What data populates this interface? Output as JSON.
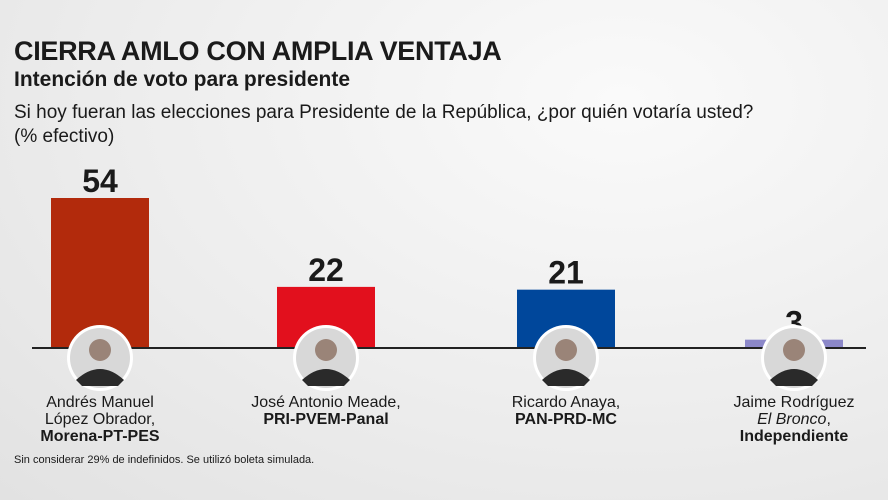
{
  "title": "CIERRA AMLO CON AMPLIA VENTAJA",
  "subtitle": "Intención de voto para presidente",
  "question": "Si hoy fueran las elecciones para Presidente de la República, ¿por quién votaría usted?",
  "unit": "(% efectivo)",
  "note": "Sin considerar 29% de indefinidos. Se utilizó boleta simulada.",
  "candidates": [
    {
      "name1": "Andrés Manuel",
      "name2": "López Obrador,",
      "party": "Morena-PT-PES"
    },
    {
      "name1": "José Antonio Meade,",
      "name2": "",
      "party": "PRI-PVEM-Panal"
    },
    {
      "name1": "Ricardo Anaya,",
      "name2": "",
      "party": "PAN-PRD-MC"
    },
    {
      "name1": "Jaime Rodríguez",
      "name2": "El Bronco",
      "name2_suffix": ",",
      "party": "Independiente"
    }
  ],
  "chart_data": {
    "type": "bar",
    "title": "Intención de voto para presidente",
    "categories": [
      "Andrés Manuel López Obrador",
      "José Antonio Meade",
      "Ricardo Anaya",
      "Jaime Rodríguez"
    ],
    "values": [
      54,
      22,
      21,
      3
    ],
    "labels": [
      "54",
      "22",
      "21",
      "3"
    ],
    "colors": [
      "#b22a0c",
      "#e2101d",
      "#00479b",
      "#8c88c9"
    ],
    "ylim": [
      0,
      54
    ],
    "xlabel": "",
    "ylabel": "% efectivo"
  }
}
